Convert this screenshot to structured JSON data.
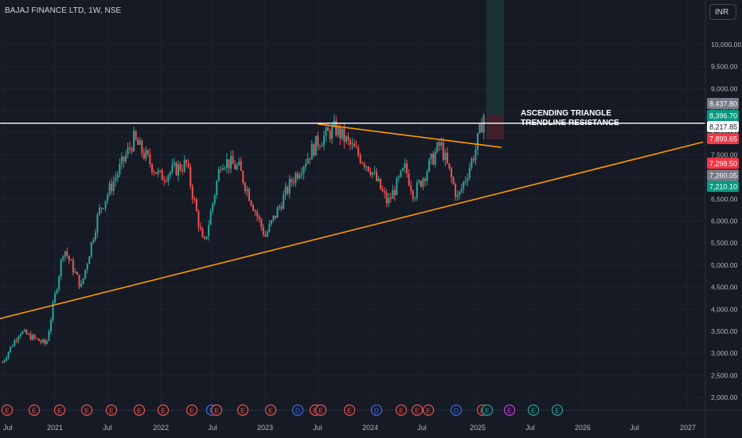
{
  "header": {
    "symbol": "BAJAJ FINANCE LTD, 1W, NSE"
  },
  "currency": "INR",
  "annotation": {
    "line1": "ASCENDING TRIANGLE",
    "line2": "TRENDLINE RESISTANCE"
  },
  "colors": {
    "background": "#161a25",
    "bull": "#26a69a",
    "bear": "#ef5350",
    "trendline": "#ff9800",
    "resistance": "#ffffff",
    "grid": "#1f2330",
    "axis_text": "#b2b5be"
  },
  "chart_data": {
    "type": "candlestick",
    "title": "BAJAJ FINANCE LTD, 1W, NSE",
    "y_axis": {
      "labels": [
        "10,000.00",
        "9,500.00",
        "9,000.00",
        "8,500.00",
        "8,000.00",
        "7,500.00",
        "7,000.00",
        "6,500.00",
        "6,000.00",
        "5,500.00",
        "5,000.00",
        "4,500.00",
        "4,000.00",
        "3,500.00",
        "3,000.00",
        "2,500.00",
        "2,000.00"
      ],
      "values": [
        10000,
        9500,
        9000,
        8500,
        8000,
        7500,
        7000,
        6500,
        6000,
        5500,
        5000,
        4500,
        4000,
        3500,
        3000,
        2500,
        2000
      ],
      "range": [
        1850,
        10500
      ]
    },
    "x_axis": {
      "labels": [
        "Jul",
        "2021",
        "Jul",
        "2022",
        "Jul",
        "2023",
        "Jul",
        "2024",
        "Jul",
        "2025",
        "Jul",
        "2026",
        "Jul",
        "2027"
      ]
    },
    "price_tags": [
      {
        "label": "8,437.80",
        "value": 8437.8,
        "color": "#787b86"
      },
      {
        "label": "8,396.70",
        "value": 8396.7,
        "color": "#089981"
      },
      {
        "label": "8,217.85",
        "value": 8217.85,
        "color": "#ffffff"
      },
      {
        "label": "7,899.65",
        "value": 7899.65,
        "color": "#f23645"
      },
      {
        "label": "7,298.50",
        "value": 7298.5,
        "color": "#f23645"
      },
      {
        "label": "7,260.05",
        "value": 7260.05,
        "color": "#787b86"
      },
      {
        "label": "7,210.10",
        "value": 7210.1,
        "color": "#089981"
      }
    ],
    "event_markers": [
      "E",
      "E",
      "E",
      "E",
      "E",
      "E",
      "E",
      "E",
      "D",
      "E",
      "E",
      "E",
      "D",
      "E",
      "E",
      "E",
      "D",
      "E",
      "E",
      "E",
      "D",
      "E",
      "E",
      "E",
      "E",
      "E"
    ],
    "key_points": [
      {
        "x": "2020-07",
        "y": 2800
      },
      {
        "x": "2020-09",
        "y": 3500
      },
      {
        "x": "2020-12",
        "y": 3200
      },
      {
        "x": "2021-02",
        "y": 5400
      },
      {
        "x": "2021-04",
        "y": 4500
      },
      {
        "x": "2021-06",
        "y": 6200
      },
      {
        "x": "2021-10",
        "y": 7850
      },
      {
        "x": "2022-01",
        "y": 7000
      },
      {
        "x": "2022-04",
        "y": 7300
      },
      {
        "x": "2022-06",
        "y": 5400
      },
      {
        "x": "2022-08",
        "y": 7400
      },
      {
        "x": "2022-10",
        "y": 7200
      },
      {
        "x": "2023-01",
        "y": 5650
      },
      {
        "x": "2023-04",
        "y": 6900
      },
      {
        "x": "2023-07",
        "y": 7800
      },
      {
        "x": "2023-09",
        "y": 8100
      },
      {
        "x": "2024-01",
        "y": 7200
      },
      {
        "x": "2024-03",
        "y": 6400
      },
      {
        "x": "2024-05",
        "y": 7200
      },
      {
        "x": "2024-06",
        "y": 6600
      },
      {
        "x": "2024-09",
        "y": 7750
      },
      {
        "x": "2024-11",
        "y": 6500
      },
      {
        "x": "2025-01",
        "y": 7600
      },
      {
        "x": "2025-02",
        "y": 8430
      }
    ],
    "trendlines": [
      {
        "name": "support",
        "from": {
          "x": "2020-06",
          "y": 3750
        },
        "to": {
          "x": "2027-03",
          "y": 7790
        }
      },
      {
        "name": "resistance-sloped",
        "from": {
          "x": "2023-07",
          "y": 8200
        },
        "to": {
          "x": "2025-04",
          "y": 7670
        }
      },
      {
        "name": "horizontal",
        "value": 8217.85
      }
    ]
  }
}
